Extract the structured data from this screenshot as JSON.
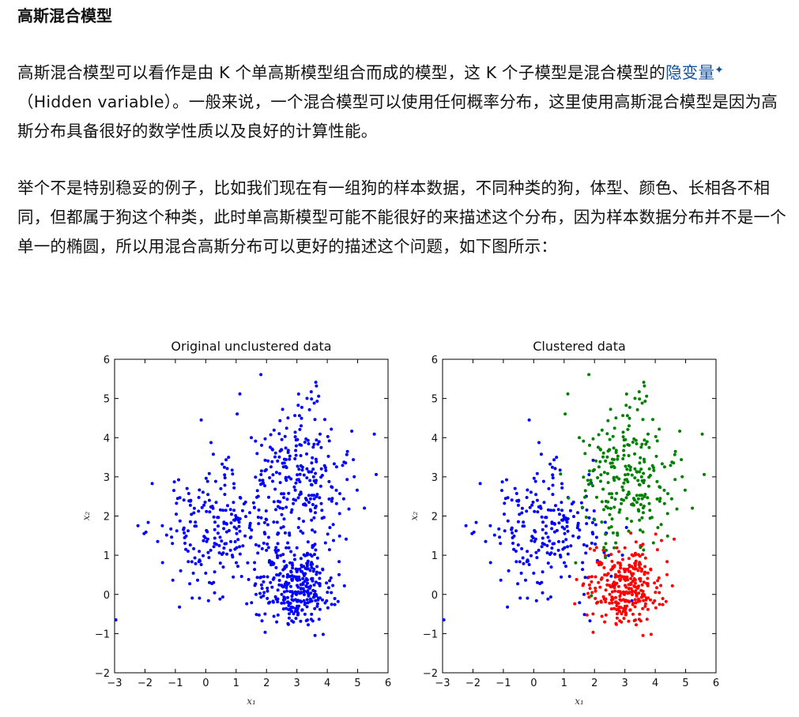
{
  "article": {
    "title": "高斯混合模型",
    "p1_before_link": "高斯混合模型可以看作是由 K 个单高斯模型组合而成的模型，这 K 个子模型是混合模型的",
    "p1_link": "隐变量",
    "p1_link_mark": "✦",
    "p1_after_link": "（Hidden variable）。一般来说，一个混合模型可以使用任何概率分布，这里使用高斯混合模型是因为高斯分布具备很好的数学性质以及良好的计算性能。",
    "p2": "举个不是特别稳妥的例子，比如我们现在有一组狗的样本数据，不同种类的狗，体型、颜色、长相各不相同，但都属于狗这个种类，此时单高斯模型可能不能很好的来描述这个分布，因为样本数据分布并不是一个单一的椭圆，所以用混合高斯分布可以更好的描述这个问题，如下图所示："
  },
  "chart_data": [
    {
      "type": "scatter",
      "title": "Original unclustered data",
      "xlabel": "x₁",
      "ylabel": "x₂",
      "xlim": [
        -3,
        6
      ],
      "ylim": [
        -2,
        6
      ],
      "xticks": [
        "−3",
        "−2",
        "−1",
        "0",
        "1",
        "2",
        "3",
        "4",
        "5",
        "6"
      ],
      "yticks": [
        "−2",
        "−1",
        "0",
        "1",
        "2",
        "3",
        "4",
        "5",
        "6"
      ],
      "grid": false,
      "series": [
        {
          "color": "#0000ff",
          "clusters": [
            {
              "center": [
                3.0,
                0.2
              ],
              "spread": [
                0.6,
                0.5
              ],
              "count": 300
            },
            {
              "center": [
                0.3,
                1.5
              ],
              "spread": [
                1.0,
                0.8
              ],
              "count": 240
            },
            {
              "center": [
                3.1,
                3.1
              ],
              "spread": [
                0.8,
                0.9
              ],
              "count": 260
            }
          ]
        }
      ]
    },
    {
      "type": "scatter",
      "title": "Clustered data",
      "xlabel": "x₁",
      "ylabel": "x₂",
      "xlim": [
        -3,
        6
      ],
      "ylim": [
        -2,
        6
      ],
      "xticks": [
        "−3",
        "−2",
        "−1",
        "0",
        "1",
        "2",
        "3",
        "4",
        "5",
        "6"
      ],
      "yticks": [
        "−2",
        "−1",
        "0",
        "1",
        "2",
        "3",
        "4",
        "5",
        "6"
      ],
      "grid": false,
      "series": [
        {
          "color": "#0000ff",
          "cluster": {
            "center": [
              0.3,
              1.5
            ],
            "spread": [
              1.0,
              0.8
            ],
            "count": 240
          }
        },
        {
          "color": "#ff0000",
          "cluster": {
            "center": [
              3.0,
              0.2
            ],
            "spread": [
              0.6,
              0.5
            ],
            "count": 300
          }
        },
        {
          "color": "#008000",
          "cluster": {
            "center": [
              3.1,
              3.1
            ],
            "spread": [
              0.8,
              0.9
            ],
            "count": 260
          }
        }
      ]
    }
  ]
}
